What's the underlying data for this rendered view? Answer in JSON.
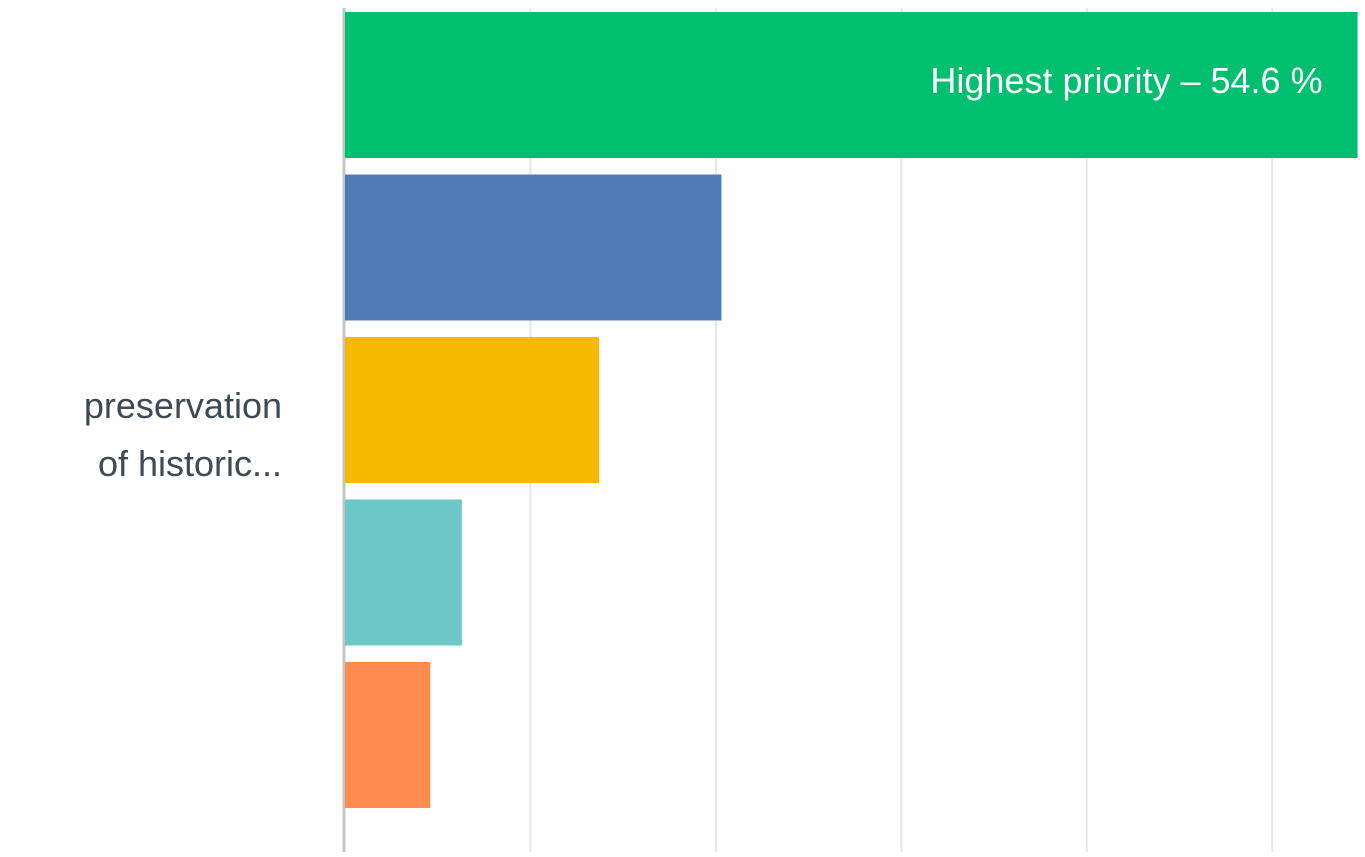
{
  "chart_data": {
    "type": "bar",
    "orientation": "horizontal",
    "category": {
      "label_lines": [
        "preservation",
        "of historic..."
      ]
    },
    "xlim": [
      0,
      55
    ],
    "x_gridline_step": 10,
    "grid": true,
    "series": [
      {
        "value": 54.6,
        "color": "#00BF6F",
        "label": "Highest priority – 54.6 %"
      },
      {
        "value": 20.3,
        "color": "#507CB6"
      },
      {
        "value": 13.7,
        "color": "#F6B900"
      },
      {
        "value": 6.3,
        "color": "#6BC8C7"
      },
      {
        "value": 4.6,
        "color": "#FF8B4F"
      }
    ]
  }
}
